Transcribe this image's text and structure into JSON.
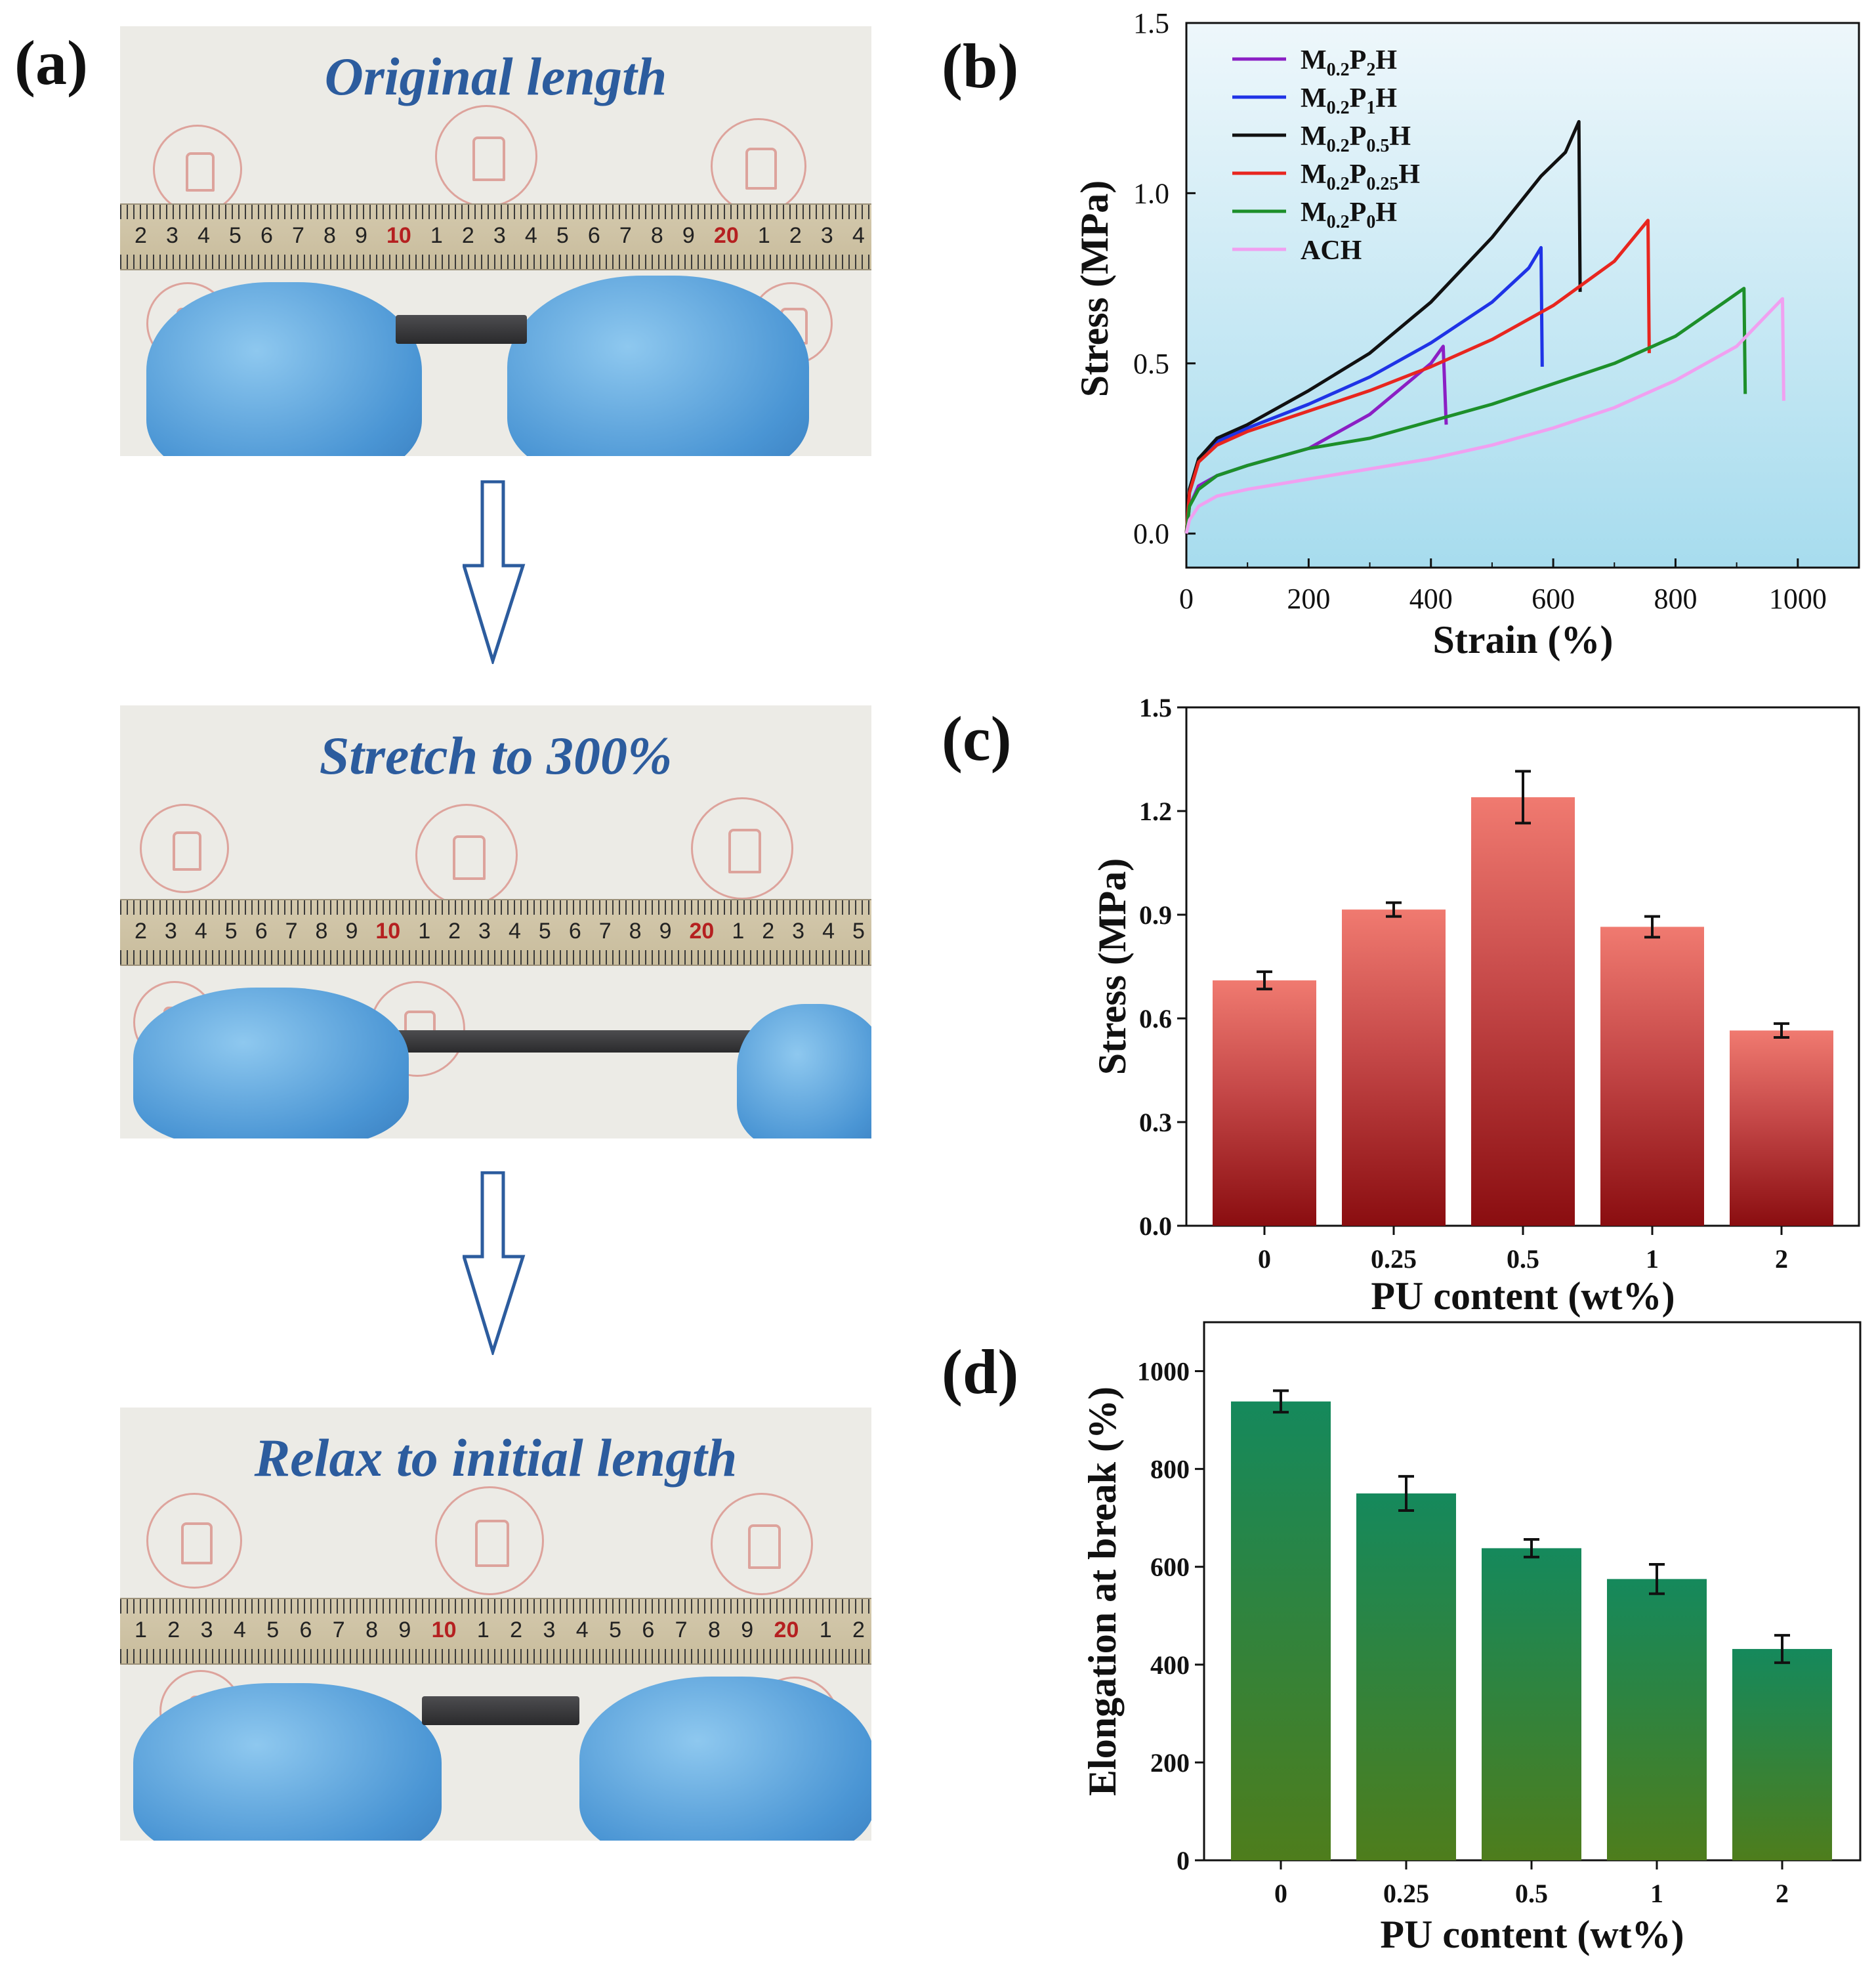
{
  "panel_labels": {
    "a": "(a)",
    "b": "(b)",
    "c": "(c)",
    "d": "(d)"
  },
  "photos": [
    {
      "caption": "Original length",
      "ruler": [
        "2",
        "3",
        "4",
        "5",
        "6",
        "7",
        "8",
        "9",
        "10",
        "1",
        "2",
        "3",
        "4",
        "5",
        "6",
        "7",
        "8",
        "9",
        "20",
        "1",
        "2",
        "3",
        "4"
      ]
    },
    {
      "caption": "Stretch to 300%",
      "ruler": [
        "2",
        "3",
        "4",
        "5",
        "6",
        "7",
        "8",
        "9",
        "10",
        "1",
        "2",
        "3",
        "4",
        "5",
        "6",
        "7",
        "8",
        "9",
        "20",
        "1",
        "2",
        "3",
        "4",
        "5"
      ]
    },
    {
      "caption": "Relax to initial length",
      "ruler": [
        "1",
        "2",
        "3",
        "4",
        "5",
        "6",
        "7",
        "8",
        "9",
        "10",
        "1",
        "2",
        "3",
        "4",
        "5",
        "6",
        "7",
        "8",
        "9",
        "20",
        "1",
        "2"
      ]
    }
  ],
  "colors": {
    "caption_blue": "#2c5c9e",
    "bar_red_top": "#f07a70",
    "bar_red_bottom": "#8a0d10",
    "bar_green_top": "#15895c",
    "bar_green_bottom": "#4e7d1c",
    "plot_bg_top": "#eef7fb",
    "plot_bg_bottom": "#a7dcee"
  },
  "chart_data": [
    {
      "id": "b",
      "type": "line",
      "xlabel": "Strain (%)",
      "ylabel": "Stress (MPa)",
      "xlim": [
        0,
        1100
      ],
      "ylim": [
        -0.1,
        1.5
      ],
      "xticks": [
        "0",
        "200",
        "400",
        "600",
        "800",
        "1000"
      ],
      "yticks": [
        "0.0",
        "0.5",
        "1.0",
        "1.5"
      ],
      "legend_position": "top-left",
      "series": [
        {
          "name": "M0.2P2H",
          "name_parts": [
            "M",
            "0.2",
            "P",
            "2",
            "H"
          ],
          "color": "#8b1fc4",
          "x": [
            0,
            5,
            20,
            50,
            100,
            200,
            300,
            400,
            420,
            425
          ],
          "y": [
            0,
            0.08,
            0.14,
            0.17,
            0.2,
            0.25,
            0.35,
            0.5,
            0.55,
            0.32
          ]
        },
        {
          "name": "M0.2P1H",
          "name_parts": [
            "M",
            "0.2",
            "P",
            "1",
            "H"
          ],
          "color": "#1f33e6",
          "x": [
            0,
            5,
            20,
            50,
            100,
            200,
            300,
            400,
            500,
            560,
            580,
            582
          ],
          "y": [
            0,
            0.12,
            0.21,
            0.27,
            0.31,
            0.38,
            0.46,
            0.56,
            0.68,
            0.78,
            0.84,
            0.49
          ]
        },
        {
          "name": "M0.2P0.5H",
          "name_parts": [
            "M",
            "0.2",
            "P",
            "0.5",
            "H"
          ],
          "color": "#111111",
          "x": [
            0,
            5,
            20,
            50,
            100,
            200,
            300,
            400,
            500,
            580,
            620,
            642,
            644
          ],
          "y": [
            0,
            0.13,
            0.22,
            0.28,
            0.32,
            0.42,
            0.53,
            0.68,
            0.87,
            1.05,
            1.12,
            1.21,
            0.71
          ]
        },
        {
          "name": "M0.2P0.25H",
          "name_parts": [
            "M",
            "0.2",
            "P",
            "0.25",
            "H"
          ],
          "color": "#e8261f",
          "x": [
            0,
            5,
            20,
            50,
            100,
            200,
            300,
            400,
            500,
            600,
            700,
            755,
            757
          ],
          "y": [
            0,
            0.12,
            0.21,
            0.26,
            0.3,
            0.36,
            0.42,
            0.49,
            0.57,
            0.67,
            0.8,
            0.92,
            0.53
          ]
        },
        {
          "name": "M0.2P0H",
          "name_parts": [
            "M",
            "0.2",
            "P",
            "0",
            "H"
          ],
          "color": "#1d8f2a",
          "x": [
            0,
            5,
            20,
            50,
            100,
            200,
            300,
            400,
            500,
            600,
            700,
            800,
            880,
            912,
            914
          ],
          "y": [
            0,
            0.08,
            0.13,
            0.17,
            0.2,
            0.25,
            0.28,
            0.33,
            0.38,
            0.44,
            0.5,
            0.58,
            0.68,
            0.72,
            0.41
          ]
        },
        {
          "name": "ACH",
          "name_parts": [
            "ACH"
          ],
          "color": "#f0a0f0",
          "x": [
            0,
            5,
            20,
            50,
            100,
            200,
            300,
            400,
            500,
            600,
            700,
            800,
            900,
            975,
            977
          ],
          "y": [
            0,
            0.04,
            0.08,
            0.11,
            0.13,
            0.16,
            0.19,
            0.22,
            0.26,
            0.31,
            0.37,
            0.45,
            0.55,
            0.69,
            0.39
          ]
        }
      ]
    },
    {
      "id": "c",
      "type": "bar",
      "xlabel": "PU content (wt%)",
      "ylabel": "Stress (MPa)",
      "categories": [
        "0",
        "0.25",
        "0.5",
        "1",
        "2"
      ],
      "values": [
        0.71,
        0.915,
        1.24,
        0.865,
        0.565
      ],
      "errors": [
        0.025,
        0.02,
        0.075,
        0.03,
        0.02
      ],
      "ylim": [
        0,
        1.5
      ],
      "yticks": [
        "0.0",
        "0.3",
        "0.6",
        "0.9",
        "1.2",
        "1.5"
      ]
    },
    {
      "id": "d",
      "type": "bar",
      "xlabel": "PU content (wt%)",
      "ylabel": "Elongation at break (%)",
      "categories": [
        "0",
        "0.25",
        "0.5",
        "1",
        "2"
      ],
      "values": [
        938,
        750,
        638,
        575,
        432
      ],
      "errors": [
        22,
        35,
        18,
        30,
        28
      ],
      "ylim": [
        0,
        1100
      ],
      "yticks": [
        "0",
        "200",
        "400",
        "600",
        "800",
        "1000"
      ]
    }
  ]
}
